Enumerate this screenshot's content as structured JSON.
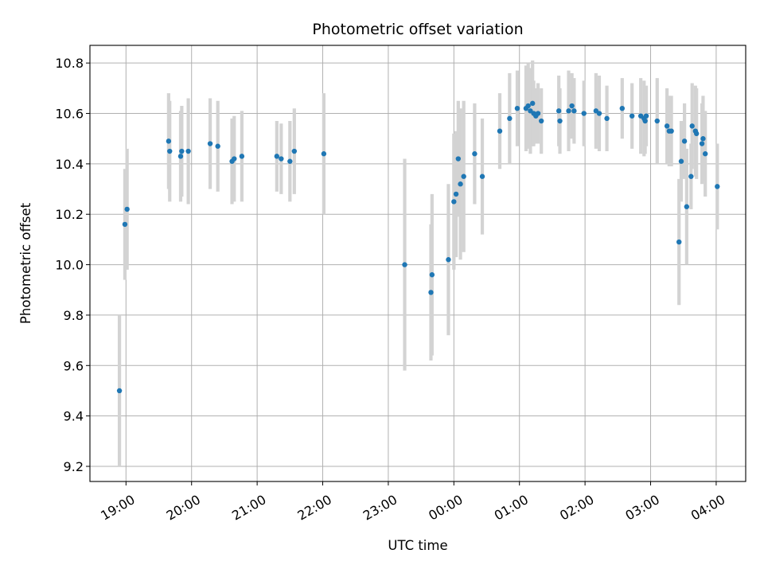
{
  "chart_data": {
    "type": "scatter",
    "title": "Photometric offset variation",
    "xlabel": "UTC time",
    "ylabel": "Photometric offset",
    "x_ticks": [
      "19:00",
      "20:00",
      "21:00",
      "22:00",
      "23:00",
      "00:00",
      "01:00",
      "02:00",
      "03:00",
      "04:00"
    ],
    "y_ticks": [
      "9.2",
      "9.4",
      "9.6",
      "9.8",
      "10.0",
      "10.2",
      "10.4",
      "10.6",
      "10.8"
    ],
    "xlim": [
      "18:27",
      "04:27"
    ],
    "ylim": [
      9.14,
      10.87
    ],
    "grid": true,
    "colors": {
      "point": "#1f77b4",
      "errorbar": "#d3d3d3",
      "grid": "#b0b0b0"
    },
    "series": [
      {
        "x": [
          "18:54",
          "18:59",
          "19:01",
          "19:39",
          "19:40",
          "19:50",
          "19:51",
          "19:57",
          "20:17",
          "20:24",
          "20:37",
          "20:39",
          "20:46",
          "21:18",
          "21:22",
          "21:30",
          "21:34",
          "22:01",
          "23:15",
          "23:39",
          "23:40",
          "23:55",
          "00:00",
          "00:02",
          "00:04",
          "00:06",
          "00:09",
          "00:19",
          "00:26",
          "00:42",
          "00:51",
          "00:58",
          "01:06",
          "01:08",
          "01:10",
          "01:12",
          "01:13",
          "01:15",
          "01:17",
          "01:20",
          "01:36",
          "01:37",
          "01:45",
          "01:48",
          "01:50",
          "01:59",
          "02:10",
          "02:13",
          "02:20",
          "02:34",
          "02:43",
          "02:51",
          "02:54",
          "02:55",
          "02:56",
          "03:06",
          "03:15",
          "03:17",
          "03:19",
          "03:26",
          "03:28",
          "03:31",
          "03:33",
          "03:37",
          "03:38",
          "03:41",
          "03:42",
          "03:47",
          "03:48",
          "03:50",
          "04:01"
        ],
        "y": [
          9.5,
          10.16,
          10.22,
          10.49,
          10.45,
          10.43,
          10.45,
          10.45,
          10.48,
          10.47,
          10.41,
          10.42,
          10.43,
          10.43,
          10.42,
          10.41,
          10.45,
          10.44,
          10.0,
          9.89,
          9.96,
          10.02,
          10.25,
          10.28,
          10.42,
          10.32,
          10.35,
          10.44,
          10.35,
          10.53,
          10.58,
          10.62,
          10.62,
          10.63,
          10.61,
          10.64,
          10.6,
          10.59,
          10.6,
          10.57,
          10.61,
          10.57,
          10.61,
          10.63,
          10.61,
          10.6,
          10.61,
          10.6,
          10.58,
          10.62,
          10.59,
          10.59,
          10.58,
          10.57,
          10.59,
          10.57,
          10.55,
          10.53,
          10.53,
          10.09,
          10.41,
          10.49,
          10.23,
          10.35,
          10.55,
          10.53,
          10.52,
          10.48,
          10.5,
          10.44,
          10.31
        ],
        "yerr": [
          0.3,
          0.22,
          0.24,
          0.19,
          0.2,
          0.18,
          0.18,
          0.21,
          0.18,
          0.18,
          0.17,
          0.17,
          0.18,
          0.14,
          0.14,
          0.16,
          0.17,
          0.24,
          0.42,
          0.27,
          0.32,
          0.3,
          0.27,
          0.25,
          0.23,
          0.3,
          0.3,
          0.2,
          0.23,
          0.15,
          0.18,
          0.15,
          0.17,
          0.17,
          0.17,
          0.17,
          0.13,
          0.11,
          0.12,
          0.13,
          0.14,
          0.13,
          0.16,
          0.13,
          0.13,
          0.13,
          0.15,
          0.15,
          0.13,
          0.12,
          0.13,
          0.15,
          0.15,
          0.13,
          0.12,
          0.17,
          0.15,
          0.14,
          0.14,
          0.25,
          0.16,
          0.15,
          0.23,
          0.13,
          0.17,
          0.18,
          0.18,
          0.16,
          0.17,
          0.17,
          0.17
        ]
      }
    ]
  }
}
